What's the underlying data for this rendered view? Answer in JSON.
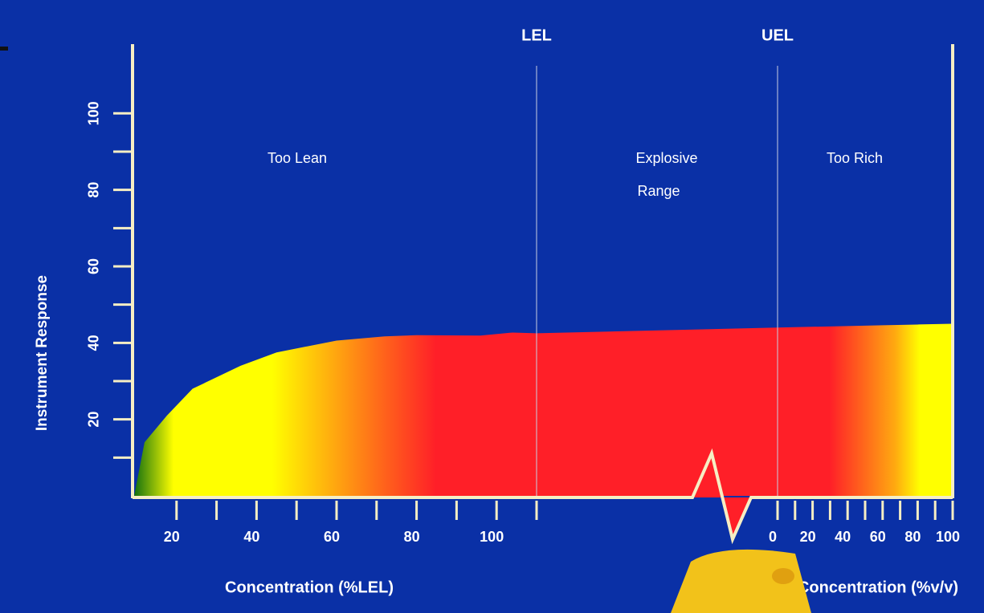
{
  "chart_data": {
    "type": "area",
    "ylabel": "Instrument Response",
    "xlabel": "Concentration (%LEL)",
    "x2label": "Concentration (%v/v)",
    "markers": [
      {
        "label": "LEL"
      },
      {
        "label": "UEL"
      }
    ],
    "regions": [
      {
        "lines": [
          "Too Lean"
        ]
      },
      {
        "lines": [
          "Explosive",
          "Range"
        ]
      },
      {
        "lines": [
          "Too Rich"
        ]
      }
    ],
    "ylim": [
      0,
      118
    ],
    "yticks": [
      20,
      40,
      60,
      80,
      100
    ],
    "yminor_ticks": [
      10,
      30,
      50,
      70,
      90
    ],
    "xlim": [
      9,
      110
    ],
    "xticks": [
      20,
      40,
      60,
      80,
      100
    ],
    "xminor_ticks": [
      30,
      50,
      70,
      90,
      110
    ],
    "x2lim": [
      0,
      100
    ],
    "x2ticks": [
      0,
      20,
      40,
      60,
      80,
      100
    ],
    "x2minor_ticks": [
      10,
      30,
      50,
      70,
      90
    ],
    "series": [
      {
        "name": "Too Lean",
        "x": [
          9.4,
          12,
          17.6,
          24,
          36,
          45,
          60,
          72,
          80,
          96,
          104,
          110
        ],
        "values": [
          0,
          14,
          21,
          28,
          34,
          37.5,
          40.6,
          41.7,
          42,
          41.9,
          42.7,
          42.5
        ]
      },
      {
        "name": "Too Rich",
        "axis": "x2",
        "x": [
          0,
          20,
          40,
          60,
          80,
          100
        ],
        "values": [
          44,
          44.2,
          44.4,
          44.6,
          44.8,
          45
        ]
      }
    ]
  }
}
